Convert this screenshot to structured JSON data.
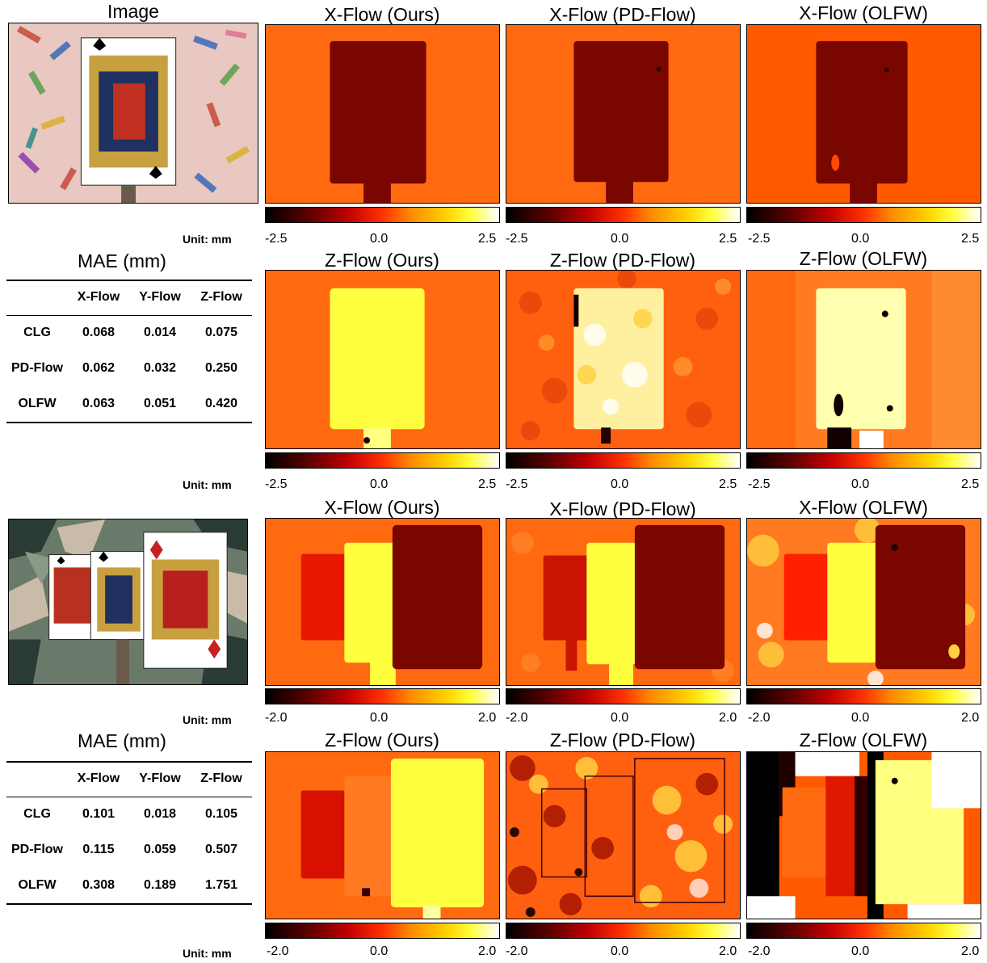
{
  "image_title": "Image",
  "unit_label": "Unit: mm",
  "mae_title": "MAE (mm)",
  "table_header": [
    "",
    "X-Flow",
    "Y-Flow",
    "Z-Flow"
  ],
  "scene1": {
    "x_titles": [
      "X-Flow (Ours)",
      "X-Flow (PD-Flow)",
      "X-Flow (OLFW)"
    ],
    "z_titles": [
      "Z-Flow (Ours)",
      "Z-Flow (PD-Flow)",
      "Z-Flow (OLFW)"
    ],
    "ticks": [
      "-2.5",
      "0.0",
      "2.5"
    ],
    "table": [
      [
        "CLG",
        "0.068",
        "0.014",
        "0.075"
      ],
      [
        "PD-Flow",
        "0.062",
        "0.032",
        "0.250"
      ],
      [
        "OLFW",
        "0.063",
        "0.051",
        "0.420"
      ]
    ]
  },
  "scene2": {
    "x_titles": [
      "X-Flow (Ours)",
      "X-Flow (PD-Flow)",
      "X-Flow (OLFW)"
    ],
    "z_titles": [
      "Z-Flow (Ours)",
      "Z-Flow (PD-Flow)",
      "Z-Flow (OLFW)"
    ],
    "ticks": [
      "-2.0",
      "0.0",
      "2.0"
    ],
    "table": [
      [
        "CLG",
        "0.101",
        "0.018",
        "0.105"
      ],
      [
        "PD-Flow",
        "0.115",
        "0.059",
        "0.507"
      ],
      [
        "OLFW",
        "0.308",
        "0.189",
        "1.751"
      ]
    ]
  },
  "colors": {
    "background_flow": "#ff6a10",
    "dark_flow": "#7a0600",
    "bright_flow": "#ffff40"
  }
}
